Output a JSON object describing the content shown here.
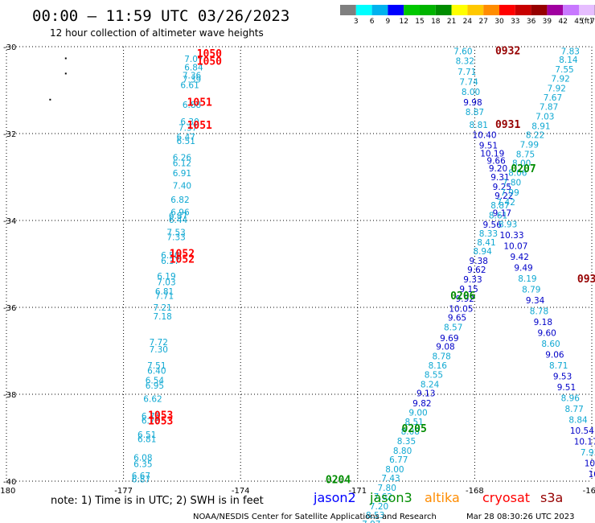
{
  "header": {
    "title": "00:00 — 11:59 UTC 03/26/2023",
    "subtitle": "12 hour collection of altimeter wave heights"
  },
  "legend": {
    "unit": "(ft)",
    "labels": [
      "3",
      "6",
      "9",
      "12",
      "15",
      "18",
      "21",
      "24",
      "27",
      "30",
      "33",
      "36",
      "39",
      "42",
      "45",
      "70"
    ],
    "colors": [
      "#7f7f7f",
      "#00ffff",
      "#00b2ee",
      "#0000ff",
      "#00c800",
      "#00b400",
      "#008c00",
      "#ffff00",
      "#ffc800",
      "#ff8c00",
      "#ff0000",
      "#c80000",
      "#960000",
      "#a000a0",
      "#c878ff",
      "#e6beff",
      "#000000"
    ]
  },
  "footer": {
    "note": "note: 1) Time is in UTC; 2) SWH is in feet",
    "credit": "NOAA/NESDIS Center for Satellite Applications and Research",
    "timestamp": "Mar 28 08:30:26 UTC 2023",
    "satellites": [
      {
        "name": "jason2",
        "color": "#0000ff"
      },
      {
        "name": "jason3",
        "color": "#008c00"
      },
      {
        "name": "altika",
        "color": "#ff8c00"
      },
      {
        "name": "cryosat",
        "color": "#ff0000"
      },
      {
        "name": "s3a",
        "color": "#960000"
      }
    ]
  },
  "chart_data": {
    "type": "scatter",
    "title": "00:00 — 11:59 UTC 03/26/2023",
    "subtitle": "12 hour collection of altimeter wave heights",
    "xlim": [
      -180,
      -165
    ],
    "ylim": [
      -40,
      -30
    ],
    "x_ticks": [
      "-180",
      "-177",
      "-174",
      "-171",
      "-168",
      "-165"
    ],
    "y_ticks": [
      "-30",
      "-32",
      "-34",
      "-36",
      "-38",
      "-40"
    ],
    "x_tick_values": [
      -180,
      -177,
      -174,
      -171,
      -168,
      -165
    ],
    "y_tick_values": [
      -30,
      -32,
      -34,
      -36,
      -38,
      -40
    ],
    "grid": true,
    "colors": {
      "light": "#0fa8d2",
      "dark": "#0000c8",
      "red": "#ff0000",
      "darkred": "#960000",
      "green": "#008c00"
    },
    "series": [
      {
        "name": "jason2",
        "color": "#0000ff"
      },
      {
        "name": "jason3",
        "color": "#008c00"
      },
      {
        "name": "altika",
        "color": "#ff8c00"
      },
      {
        "name": "cryosat",
        "color": "#ff0000"
      },
      {
        "name": "s3a",
        "color": "#960000"
      }
    ],
    "dots": [
      {
        "lon": -178.5,
        "lat": -30.25
      },
      {
        "lon": -178.5,
        "lat": -30.6
      },
      {
        "lon": -178.9,
        "lat": -31.2
      }
    ],
    "points": [
      {
        "lon": -175.2,
        "lat": -30.28,
        "v": "7.07",
        "c": "light"
      },
      {
        "lon": -175.2,
        "lat": -30.47,
        "v": "6.84",
        "c": "light"
      },
      {
        "lon": -175.25,
        "lat": -30.66,
        "v": "7.36",
        "c": "light"
      },
      {
        "lon": -175.25,
        "lat": -30.75,
        "v": "7.39",
        "c": "light"
      },
      {
        "lon": -175.3,
        "lat": -30.88,
        "v": "6.61",
        "c": "light"
      },
      {
        "lon": -175.25,
        "lat": -31.33,
        "v": "6.88",
        "c": "light"
      },
      {
        "lon": -175.3,
        "lat": -31.72,
        "v": "6.30",
        "c": "light"
      },
      {
        "lon": -175.35,
        "lat": -31.86,
        "v": "7.37",
        "c": "light"
      },
      {
        "lon": -175.4,
        "lat": -32.07,
        "v": "6.47",
        "c": "light"
      },
      {
        "lon": -175.4,
        "lat": -32.17,
        "v": "6.51",
        "c": "light"
      },
      {
        "lon": -175.5,
        "lat": -32.55,
        "v": "6.26",
        "c": "light"
      },
      {
        "lon": -175.5,
        "lat": -32.68,
        "v": "6.12",
        "c": "light"
      },
      {
        "lon": -175.5,
        "lat": -32.91,
        "v": "6.91",
        "c": "light"
      },
      {
        "lon": -175.5,
        "lat": -33.19,
        "v": "7.40",
        "c": "light"
      },
      {
        "lon": -175.55,
        "lat": -33.52,
        "v": "6.82",
        "c": "light"
      },
      {
        "lon": -175.55,
        "lat": -33.81,
        "v": "6.96",
        "c": "light"
      },
      {
        "lon": -175.6,
        "lat": -33.89,
        "v": "6.87",
        "c": "light"
      },
      {
        "lon": -175.6,
        "lat": -33.98,
        "v": "6.44",
        "c": "light"
      },
      {
        "lon": -175.65,
        "lat": -34.27,
        "v": "7.53",
        "c": "light"
      },
      {
        "lon": -175.65,
        "lat": -34.38,
        "v": "7.33",
        "c": "light"
      },
      {
        "lon": -175.8,
        "lat": -34.8,
        "v": "6.50",
        "c": "light"
      },
      {
        "lon": -175.8,
        "lat": -34.93,
        "v": "6.37",
        "c": "light"
      },
      {
        "lon": -175.9,
        "lat": -35.28,
        "v": "6.19",
        "c": "light"
      },
      {
        "lon": -175.9,
        "lat": -35.42,
        "v": "7.03",
        "c": "light"
      },
      {
        "lon": -175.95,
        "lat": -35.63,
        "v": "6.81",
        "c": "light"
      },
      {
        "lon": -175.95,
        "lat": -35.73,
        "v": "7.71",
        "c": "light"
      },
      {
        "lon": -176.0,
        "lat": -36.0,
        "v": "7.21",
        "c": "light"
      },
      {
        "lon": -176.0,
        "lat": -36.2,
        "v": "7.18",
        "c": "light"
      },
      {
        "lon": -176.1,
        "lat": -36.8,
        "v": "7.72",
        "c": "light"
      },
      {
        "lon": -176.1,
        "lat": -36.96,
        "v": "7.30",
        "c": "light"
      },
      {
        "lon": -176.15,
        "lat": -37.33,
        "v": "7.51",
        "c": "light"
      },
      {
        "lon": -176.15,
        "lat": -37.45,
        "v": "6.40",
        "c": "light"
      },
      {
        "lon": -176.2,
        "lat": -37.68,
        "v": "6.54",
        "c": "light"
      },
      {
        "lon": -176.2,
        "lat": -37.8,
        "v": "6.95",
        "c": "light"
      },
      {
        "lon": -176.25,
        "lat": -38.1,
        "v": "6.62",
        "c": "light"
      },
      {
        "lon": -176.3,
        "lat": -38.5,
        "v": "6.73",
        "c": "light"
      },
      {
        "lon": -176.3,
        "lat": -38.6,
        "v": "6.76",
        "c": "light"
      },
      {
        "lon": -176.4,
        "lat": -38.93,
        "v": "6.51",
        "c": "light"
      },
      {
        "lon": -176.4,
        "lat": -39.03,
        "v": "6.81",
        "c": "light"
      },
      {
        "lon": -176.5,
        "lat": -39.45,
        "v": "6.08",
        "c": "light"
      },
      {
        "lon": -176.5,
        "lat": -39.6,
        "v": "6.35",
        "c": "light"
      },
      {
        "lon": -176.55,
        "lat": -39.87,
        "v": "6.67",
        "c": "light"
      },
      {
        "lon": -176.55,
        "lat": -39.95,
        "v": "6.87",
        "c": "light"
      },
      {
        "lon": -168.3,
        "lat": -30.1,
        "v": "7.60",
        "c": "light"
      },
      {
        "lon": -168.25,
        "lat": -30.32,
        "v": "8.32",
        "c": "light"
      },
      {
        "lon": -168.2,
        "lat": -30.57,
        "v": "7.71",
        "c": "light"
      },
      {
        "lon": -168.15,
        "lat": -30.81,
        "v": "7.74",
        "c": "light"
      },
      {
        "lon": -168.1,
        "lat": -31.04,
        "v": "8.00",
        "c": "light"
      },
      {
        "lon": -168.05,
        "lat": -31.28,
        "v": "9.98",
        "c": "dark"
      },
      {
        "lon": -168.0,
        "lat": -31.5,
        "v": "8.87",
        "c": "light"
      },
      {
        "lon": -167.9,
        "lat": -31.8,
        "v": "8.81",
        "c": "light"
      },
      {
        "lon": -167.75,
        "lat": -32.03,
        "v": "10.40",
        "c": "dark"
      },
      {
        "lon": -167.65,
        "lat": -32.27,
        "v": "9.51",
        "c": "dark"
      },
      {
        "lon": -167.55,
        "lat": -32.45,
        "v": "10.19",
        "c": "dark"
      },
      {
        "lon": -167.45,
        "lat": -32.62,
        "v": "9.66",
        "c": "dark"
      },
      {
        "lon": -167.4,
        "lat": -32.8,
        "v": "9.20",
        "c": "dark"
      },
      {
        "lon": -167.35,
        "lat": -33.0,
        "v": "9.31",
        "c": "dark"
      },
      {
        "lon": -167.3,
        "lat": -33.22,
        "v": "9.25",
        "c": "dark"
      },
      {
        "lon": -167.25,
        "lat": -33.43,
        "v": "9.22",
        "c": "dark"
      },
      {
        "lon": -167.35,
        "lat": -33.65,
        "v": "8.87",
        "c": "light"
      },
      {
        "lon": -167.4,
        "lat": -33.88,
        "v": "8.61",
        "c": "light"
      },
      {
        "lon": -167.55,
        "lat": -34.09,
        "v": "9.56",
        "c": "dark"
      },
      {
        "lon": -167.65,
        "lat": -34.3,
        "v": "8.33",
        "c": "light"
      },
      {
        "lon": -167.7,
        "lat": -34.5,
        "v": "8.41",
        "c": "light"
      },
      {
        "lon": -167.8,
        "lat": -34.7,
        "v": "8.94",
        "c": "light"
      },
      {
        "lon": -167.9,
        "lat": -34.93,
        "v": "9.38",
        "c": "dark"
      },
      {
        "lon": -167.95,
        "lat": -35.13,
        "v": "9.62",
        "c": "dark"
      },
      {
        "lon": -168.05,
        "lat": -35.35,
        "v": "9.33",
        "c": "dark"
      },
      {
        "lon": -168.15,
        "lat": -35.57,
        "v": "9.15",
        "c": "dark"
      },
      {
        "lon": -168.25,
        "lat": -35.8,
        "v": "9.92",
        "c": "dark"
      },
      {
        "lon": -168.35,
        "lat": -36.03,
        "v": "10.05",
        "c": "dark"
      },
      {
        "lon": -168.45,
        "lat": -36.23,
        "v": "9.65",
        "c": "dark"
      },
      {
        "lon": -168.55,
        "lat": -36.45,
        "v": "8.57",
        "c": "light"
      },
      {
        "lon": -168.65,
        "lat": -36.7,
        "v": "9.69",
        "c": "dark"
      },
      {
        "lon": -168.75,
        "lat": -36.9,
        "v": "9.08",
        "c": "dark"
      },
      {
        "lon": -168.85,
        "lat": -37.12,
        "v": "8.78",
        "c": "light"
      },
      {
        "lon": -168.95,
        "lat": -37.33,
        "v": "8.16",
        "c": "light"
      },
      {
        "lon": -169.05,
        "lat": -37.55,
        "v": "8.55",
        "c": "light"
      },
      {
        "lon": -169.15,
        "lat": -37.77,
        "v": "8.24",
        "c": "light"
      },
      {
        "lon": -169.25,
        "lat": -37.97,
        "v": "9.13",
        "c": "dark"
      },
      {
        "lon": -169.35,
        "lat": -38.2,
        "v": "9.82",
        "c": "dark"
      },
      {
        "lon": -169.45,
        "lat": -38.42,
        "v": "9.00",
        "c": "light"
      },
      {
        "lon": -169.55,
        "lat": -38.63,
        "v": "8.51",
        "c": "light"
      },
      {
        "lon": -169.65,
        "lat": -38.85,
        "v": "8.08",
        "c": "light"
      },
      {
        "lon": -169.75,
        "lat": -39.07,
        "v": "8.35",
        "c": "light"
      },
      {
        "lon": -169.85,
        "lat": -39.3,
        "v": "8.80",
        "c": "light"
      },
      {
        "lon": -169.95,
        "lat": -39.5,
        "v": "6.77",
        "c": "light"
      },
      {
        "lon": -170.05,
        "lat": -39.72,
        "v": "8.00",
        "c": "light"
      },
      {
        "lon": -170.15,
        "lat": -39.93,
        "v": "7.43",
        "c": "light"
      },
      {
        "lon": -170.25,
        "lat": -40.15,
        "v": "7.80",
        "c": "light"
      },
      {
        "lon": -170.35,
        "lat": -40.35,
        "v": "7.62",
        "c": "light"
      },
      {
        "lon": -170.45,
        "lat": -40.57,
        "v": "7.20",
        "c": "light"
      },
      {
        "lon": -170.55,
        "lat": -40.78,
        "v": "8.53",
        "c": "light"
      },
      {
        "lon": -170.65,
        "lat": -40.98,
        "v": "7.97",
        "c": "light"
      },
      {
        "lon": -165.55,
        "lat": -30.1,
        "v": "7.83",
        "c": "light"
      },
      {
        "lon": -165.6,
        "lat": -30.3,
        "v": "8.14",
        "c": "light"
      },
      {
        "lon": -165.7,
        "lat": -30.52,
        "v": "7.55",
        "c": "light"
      },
      {
        "lon": -165.8,
        "lat": -30.73,
        "v": "7.92",
        "c": "light"
      },
      {
        "lon": -165.9,
        "lat": -30.95,
        "v": "7.92",
        "c": "light"
      },
      {
        "lon": -166.0,
        "lat": -31.17,
        "v": "7.67",
        "c": "light"
      },
      {
        "lon": -166.1,
        "lat": -31.38,
        "v": "7.87",
        "c": "light"
      },
      {
        "lon": -166.2,
        "lat": -31.6,
        "v": "7.03",
        "c": "light"
      },
      {
        "lon": -166.3,
        "lat": -31.82,
        "v": "8.91",
        "c": "light"
      },
      {
        "lon": -166.45,
        "lat": -32.03,
        "v": "8.22",
        "c": "light"
      },
      {
        "lon": -166.6,
        "lat": -32.25,
        "v": "7.99",
        "c": "light"
      },
      {
        "lon": -166.7,
        "lat": -32.47,
        "v": "8.75",
        "c": "light"
      },
      {
        "lon": -166.8,
        "lat": -32.68,
        "v": "8.00",
        "c": "light"
      },
      {
        "lon": -166.9,
        "lat": -32.9,
        "v": "8.06",
        "c": "light"
      },
      {
        "lon": -167.05,
        "lat": -33.12,
        "v": "7.80",
        "c": "light"
      },
      {
        "lon": -167.1,
        "lat": -33.35,
        "v": "7.99",
        "c": "light"
      },
      {
        "lon": -167.2,
        "lat": -33.57,
        "v": "7.42",
        "c": "light"
      },
      {
        "lon": -167.3,
        "lat": -33.82,
        "v": "9.17",
        "c": "dark"
      },
      {
        "lon": -167.15,
        "lat": -34.08,
        "v": "8.93",
        "c": "light"
      },
      {
        "lon": -167.05,
        "lat": -34.33,
        "v": "10.33",
        "c": "dark"
      },
      {
        "lon": -166.95,
        "lat": -34.58,
        "v": "10.07",
        "c": "dark"
      },
      {
        "lon": -166.85,
        "lat": -34.83,
        "v": "9.42",
        "c": "dark"
      },
      {
        "lon": -166.75,
        "lat": -35.08,
        "v": "9.49",
        "c": "dark"
      },
      {
        "lon": -166.65,
        "lat": -35.33,
        "v": "8.19",
        "c": "light"
      },
      {
        "lon": -166.55,
        "lat": -35.58,
        "v": "8.79",
        "c": "light"
      },
      {
        "lon": -166.45,
        "lat": -35.83,
        "v": "9.34",
        "c": "dark"
      },
      {
        "lon": -166.35,
        "lat": -36.08,
        "v": "8.78",
        "c": "light"
      },
      {
        "lon": -166.25,
        "lat": -36.33,
        "v": "9.18",
        "c": "dark"
      },
      {
        "lon": -166.15,
        "lat": -36.58,
        "v": "9.60",
        "c": "dark"
      },
      {
        "lon": -166.05,
        "lat": -36.83,
        "v": "8.60",
        "c": "light"
      },
      {
        "lon": -165.95,
        "lat": -37.08,
        "v": "9.06",
        "c": "dark"
      },
      {
        "lon": -165.85,
        "lat": -37.33,
        "v": "8.71",
        "c": "light"
      },
      {
        "lon": -165.75,
        "lat": -37.58,
        "v": "9.53",
        "c": "dark"
      },
      {
        "lon": -165.65,
        "lat": -37.83,
        "v": "9.51",
        "c": "dark"
      },
      {
        "lon": -165.55,
        "lat": -38.08,
        "v": "8.96",
        "c": "light"
      },
      {
        "lon": -165.45,
        "lat": -38.33,
        "v": "8.77",
        "c": "light"
      },
      {
        "lon": -165.35,
        "lat": -38.58,
        "v": "8.84",
        "c": "light"
      },
      {
        "lon": -165.25,
        "lat": -38.83,
        "v": "10.54",
        "c": "dark"
      },
      {
        "lon": -165.15,
        "lat": -39.08,
        "v": "10.17",
        "c": "dark"
      },
      {
        "lon": -165.05,
        "lat": -39.33,
        "v": "7.93",
        "c": "light"
      },
      {
        "lon": -164.95,
        "lat": -39.58,
        "v": "10.0",
        "c": "dark"
      },
      {
        "lon": -164.85,
        "lat": -39.83,
        "v": "10.5",
        "c": "dark"
      },
      {
        "lon": -164.75,
        "lat": -40.08,
        "v": "9.",
        "c": "dark"
      },
      {
        "lon": -164.65,
        "lat": -40.33,
        "v": "9",
        "c": "dark"
      }
    ],
    "time_labels": [
      {
        "lon": -174.8,
        "lat": -30.15,
        "v": "1050",
        "c": "red"
      },
      {
        "lon": -174.8,
        "lat": -30.32,
        "v": "1050",
        "c": "red"
      },
      {
        "lon": -175.05,
        "lat": -31.27,
        "v": "1051",
        "c": "red"
      },
      {
        "lon": -175.05,
        "lat": -31.8,
        "v": "1051",
        "c": "red"
      },
      {
        "lon": -175.5,
        "lat": -34.75,
        "v": "1052",
        "c": "red"
      },
      {
        "lon": -175.5,
        "lat": -34.88,
        "v": "1052",
        "c": "red"
      },
      {
        "lon": -176.05,
        "lat": -38.47,
        "v": "1053",
        "c": "red"
      },
      {
        "lon": -176.05,
        "lat": -38.6,
        "v": "1053",
        "c": "red"
      },
      {
        "lon": -167.15,
        "lat": -30.08,
        "v": "0932",
        "c": "darkred"
      },
      {
        "lon": -167.15,
        "lat": -31.78,
        "v": "0931",
        "c": "darkred"
      },
      {
        "lon": -165.05,
        "lat": -35.33,
        "v": "0930",
        "c": "darkred"
      },
      {
        "lon": -166.75,
        "lat": -32.8,
        "v": "0207",
        "c": "green"
      },
      {
        "lon": -168.3,
        "lat": -35.72,
        "v": "0206",
        "c": "green"
      },
      {
        "lon": -169.55,
        "lat": -38.78,
        "v": "0205",
        "c": "green"
      },
      {
        "lon": -171.5,
        "lat": -39.95,
        "v": "0204",
        "c": "green"
      }
    ]
  }
}
